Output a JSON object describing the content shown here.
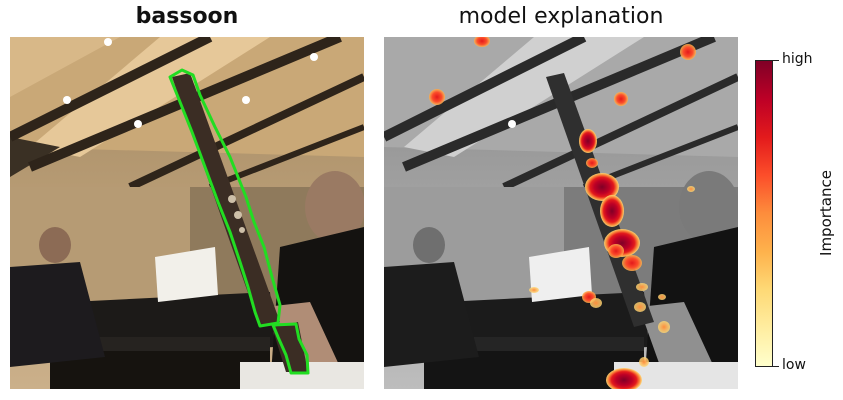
{
  "titles": {
    "left": "bassoon",
    "right": "model explanation"
  },
  "colorbar": {
    "label": "Importance",
    "high": "high",
    "low": "low",
    "colormap": "YlOrRd",
    "colors": [
      "#ffffcc",
      "#fed976",
      "#fd8d3c",
      "#e31a1c",
      "#800026"
    ]
  },
  "segmentation": {
    "outline_color": "#22dd22"
  }
}
